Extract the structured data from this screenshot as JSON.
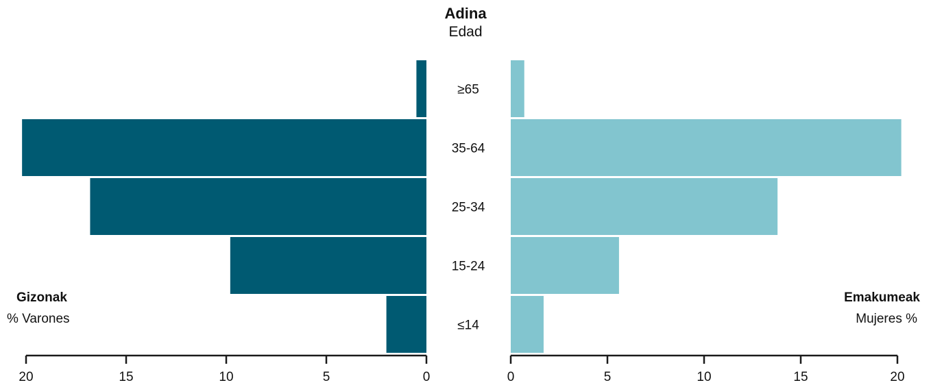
{
  "header": {
    "title": "Adina",
    "subtitle": "Edad"
  },
  "left_panel": {
    "label_main": "Gizonak",
    "label_sub": "% Varones"
  },
  "right_panel": {
    "label_main": "Emakumeak",
    "label_sub": "Mujeres %"
  },
  "colors": {
    "male": "#005a72",
    "female": "#82c5cf",
    "axis": "#1a1a1a"
  },
  "chart_data": {
    "type": "bar",
    "orientation": "horizontal",
    "layout": "population-pyramid",
    "categories": [
      "≥65",
      "35-64",
      "25-34",
      "15-24",
      "≤14"
    ],
    "series": [
      {
        "name": "Gizonak",
        "side": "left",
        "values": [
          0.5,
          20.2,
          16.8,
          9.8,
          2.0
        ]
      },
      {
        "name": "Emakumeak",
        "side": "right",
        "values": [
          0.7,
          20.2,
          13.8,
          5.6,
          1.7
        ]
      }
    ],
    "xlim": [
      0,
      20
    ],
    "xticks": [
      0,
      5,
      10,
      15,
      20
    ],
    "grid": false
  }
}
